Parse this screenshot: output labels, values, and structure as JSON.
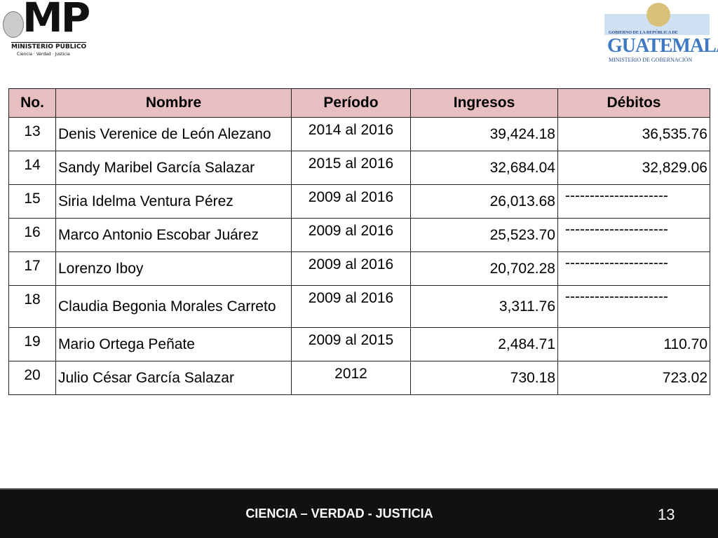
{
  "header": {
    "left_logo": {
      "title": "MP",
      "name": "MINISTERIO PÚBLICO",
      "motto": "Ciencia  ·  Verdad  ·  Justicia"
    },
    "right_logo": {
      "line1": "GOBIERNO DE LA REPÚBLICA DE",
      "title": "GUATEMALA",
      "line2": "MINISTERIO DE GOBERNACIÓN"
    }
  },
  "table": {
    "columns": [
      "No.",
      "Nombre",
      "Período",
      "Ingresos",
      "Débitos"
    ],
    "rows": [
      [
        "13",
        "Denis Verenice de León Alezano",
        "2014 al 2016",
        "39,424.18",
        "36,535.76"
      ],
      [
        "14",
        "Sandy Maribel García Salazar",
        "2015 al 2016",
        "32,684.04",
        "32,829.06"
      ],
      [
        "15",
        "Siria Idelma Ventura Pérez",
        "2009 al 2016",
        "26,013.68",
        "---------------------"
      ],
      [
        "16",
        "Marco Antonio Escobar Juárez",
        "2009 al 2016",
        "25,523.70",
        "---------------------"
      ],
      [
        "17",
        "Lorenzo Iboy",
        "2009 al 2016",
        "20,702.28",
        "---------------------"
      ],
      [
        "18",
        "Claudia Begonia Morales Carreto",
        "2009 al 2016",
        "3,311.76",
        "---------------------"
      ],
      [
        "19",
        "Mario Ortega Peñate",
        "2009 al 2015",
        "2,484.71",
        "110.70"
      ],
      [
        "20",
        "Julio César García Salazar",
        "2012",
        "730.18",
        "723.02"
      ]
    ]
  },
  "footer": {
    "motto": "CIENCIA – VERDAD - JUSTICIA",
    "page": "13"
  }
}
